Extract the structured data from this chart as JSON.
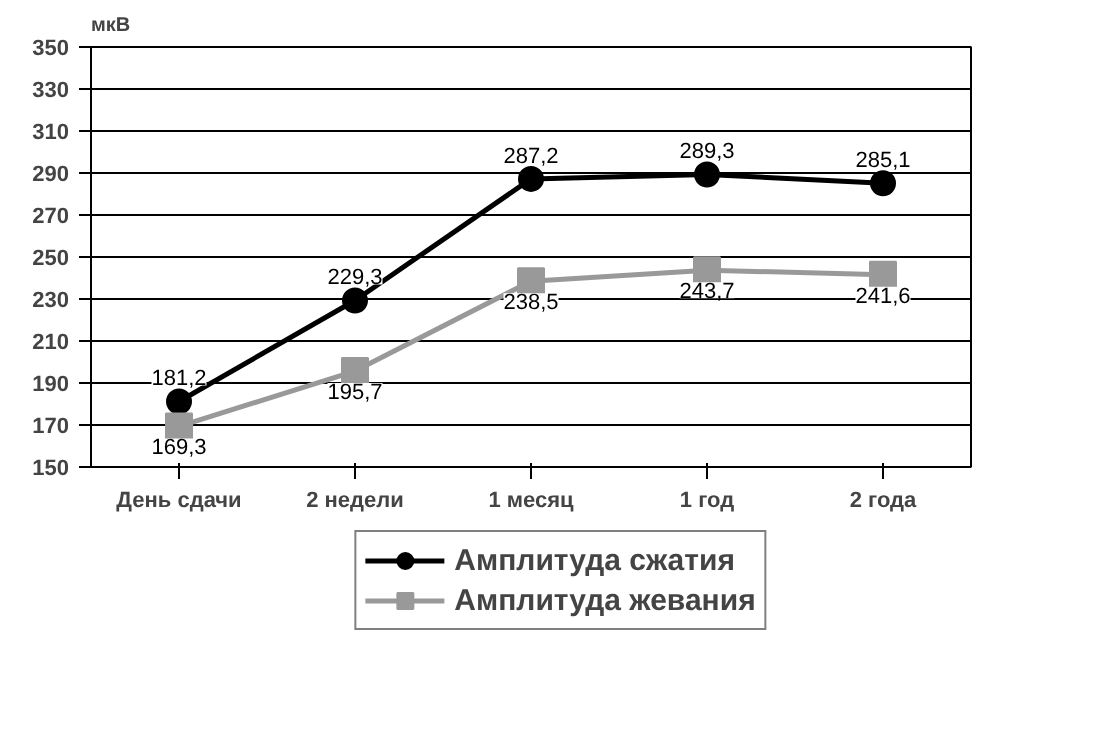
{
  "chart_data": {
    "type": "line",
    "ylabel": "мкВ",
    "categories": [
      "День сдачи",
      "2 недели",
      "1 месяц",
      "1 год",
      "2 года"
    ],
    "series": [
      {
        "name": "Амплитуда сжатия",
        "color": "#000000",
        "marker": "circle",
        "values": [
          181.2,
          229.3,
          287.2,
          289.3,
          285.1
        ],
        "value_labels": [
          "181,2",
          "229,3",
          "287,2",
          "289,3",
          "285,1"
        ]
      },
      {
        "name": "Амплитуда жевания",
        "color": "#999999",
        "marker": "square",
        "values": [
          169.3,
          195.7,
          238.5,
          243.7,
          241.6
        ],
        "value_labels": [
          "169,3",
          "195,7",
          "238,5",
          "243,7",
          "241,6"
        ]
      }
    ],
    "ylim": [
      150,
      350
    ],
    "yticks": [
      150,
      170,
      190,
      210,
      230,
      250,
      270,
      290,
      310,
      330,
      350
    ],
    "grid": "y",
    "legend": "bottom"
  }
}
